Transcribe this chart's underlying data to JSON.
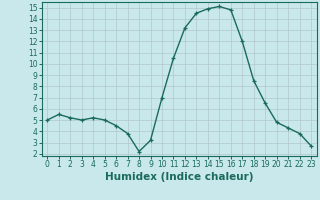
{
  "x": [
    0,
    1,
    2,
    3,
    4,
    5,
    6,
    7,
    8,
    9,
    10,
    11,
    12,
    13,
    14,
    15,
    16,
    17,
    18,
    19,
    20,
    21,
    22,
    23
  ],
  "y": [
    5.0,
    5.5,
    5.2,
    5.0,
    5.2,
    5.0,
    4.5,
    3.8,
    2.2,
    3.2,
    7.0,
    10.5,
    13.2,
    14.5,
    14.9,
    15.1,
    14.8,
    12.0,
    8.5,
    6.5,
    4.8,
    4.3,
    3.8,
    2.7
  ],
  "xlabel": "Humidex (Indice chaleur)",
  "line_color": "#1a6b5a",
  "marker_color": "#1a6b5a",
  "bg_color": "#c8e8ec",
  "grid_color": "#b0c8cc",
  "xlim": [
    -0.5,
    23.5
  ],
  "ylim": [
    1.8,
    15.5
  ],
  "yticks": [
    2,
    3,
    4,
    5,
    6,
    7,
    8,
    9,
    10,
    11,
    12,
    13,
    14,
    15
  ],
  "xticks": [
    0,
    1,
    2,
    3,
    4,
    5,
    6,
    7,
    8,
    9,
    10,
    11,
    12,
    13,
    14,
    15,
    16,
    17,
    18,
    19,
    20,
    21,
    22,
    23
  ],
  "tick_label_fontsize": 5.5,
  "xlabel_fontsize": 7.5,
  "marker_size": 3.0,
  "line_width": 1.0
}
